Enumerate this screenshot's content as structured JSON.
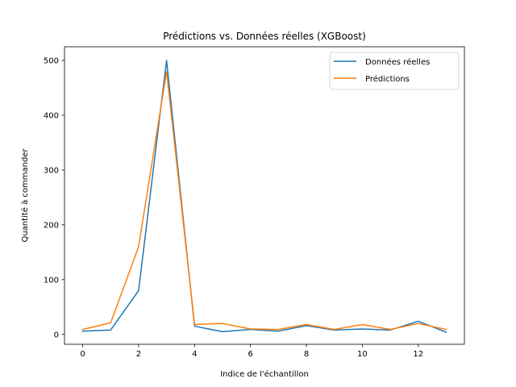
{
  "chart_data": {
    "type": "line",
    "title": "Prédictions vs. Données réelles (XGBoost)",
    "xlabel": "Indice de l'échantillon",
    "ylabel": "Quantité à commander",
    "xlim": [
      -0.65,
      13.65
    ],
    "ylim": [
      -18,
      525
    ],
    "x_ticks": [
      0,
      2,
      4,
      6,
      8,
      10,
      12
    ],
    "y_ticks": [
      0,
      100,
      200,
      300,
      400,
      500
    ],
    "grid": false,
    "legend_position": "top-right",
    "x": [
      0,
      1,
      2,
      3,
      4,
      5,
      6,
      7,
      8,
      9,
      10,
      11,
      12,
      13
    ],
    "series": [
      {
        "name": "Données réelles",
        "color": "#1f77b4",
        "values": [
          6,
          8,
          80,
          500,
          15,
          5,
          9,
          6,
          16,
          8,
          10,
          8,
          24,
          4
        ]
      },
      {
        "name": "Prédictions",
        "color": "#ff7f0e",
        "values": [
          9,
          21,
          160,
          480,
          18,
          20,
          10,
          9,
          18,
          9,
          18,
          9,
          20,
          9
        ]
      }
    ]
  }
}
